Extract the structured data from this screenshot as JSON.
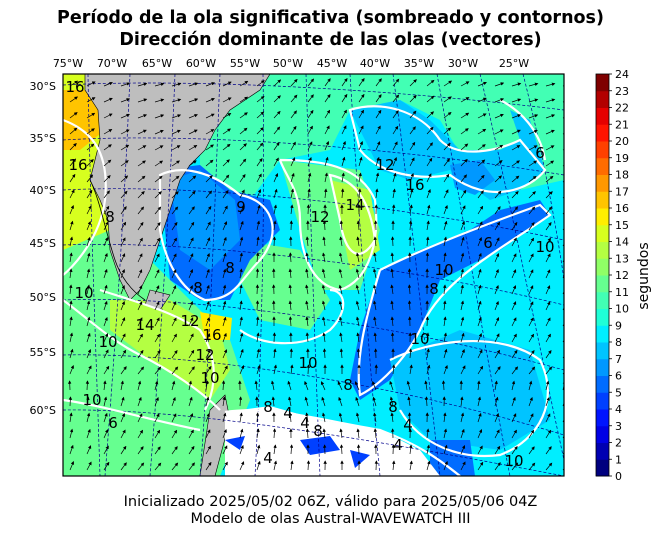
{
  "title_line1": "Período de la ola significativa (sombreado y contornos)",
  "title_line2": "Dirección dominante de las olas (vectores)",
  "footer_line1": "Inicializado 2025/05/02 06Z, válido para 2025/05/06 04Z",
  "footer_line2": "Modelo de olas Austral-WAVEWATCH III",
  "lon_ticks": [
    "75°W",
    "70°W",
    "65°W",
    "60°W",
    "55°W",
    "50°W",
    "45°W",
    "40°W",
    "35°W",
    "30°W",
    "25°W"
  ],
  "lat_ticks": [
    "30°S",
    "35°S",
    "40°S",
    "45°S",
    "50°S",
    "55°S",
    "60°S"
  ],
  "colorbar": {
    "label": "segundos",
    "ticks": [
      "0",
      "1",
      "2",
      "3",
      "4",
      "5",
      "6",
      "7",
      "8",
      "9",
      "10",
      "11",
      "12",
      "13",
      "14",
      "15",
      "16",
      "17",
      "18",
      "19",
      "20",
      "21",
      "22",
      "23",
      "24"
    ],
    "colors": [
      "#00007f",
      "#0000b2",
      "#0000e5",
      "#0014ff",
      "#0040ff",
      "#006cff",
      "#0098ff",
      "#00c4ff",
      "#00eeff",
      "#1fffd7",
      "#42ffb4",
      "#66ff90",
      "#90ff66",
      "#b4ff42",
      "#d7ff1f",
      "#ffee00",
      "#ffc400",
      "#ff9800",
      "#ff6c00",
      "#ff4000",
      "#ff1400",
      "#e50000",
      "#b20000",
      "#7f0000"
    ]
  },
  "contour_labels": [
    "16",
    "16",
    "8",
    "9",
    "12",
    "14",
    "6",
    "8",
    "12",
    "16",
    "8",
    "10",
    "6",
    "10",
    "10",
    "14",
    "8",
    "10",
    "12",
    "16",
    "12",
    "10",
    "10",
    "8",
    "10",
    "10",
    "6",
    "8",
    "4",
    "4",
    "8",
    "8",
    "4",
    "4",
    "4",
    "10"
  ]
}
